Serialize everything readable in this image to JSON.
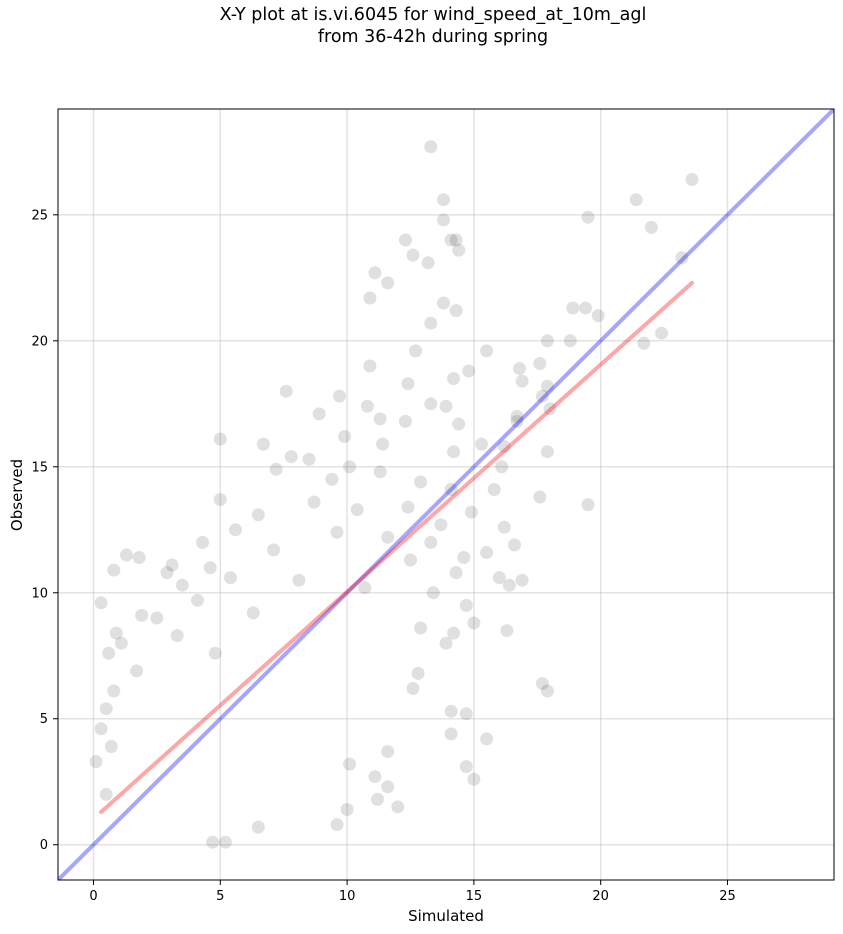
{
  "chart_data": {
    "type": "scatter",
    "title_line1": "X-Y plot at is.vi.6045 for wind_speed_at_10m_agl",
    "title_line2": "from 36-42h during spring",
    "xlabel": "Simulated",
    "ylabel": "Observed",
    "xlim": [
      -1.4,
      29.2
    ],
    "ylim": [
      -1.4,
      29.2
    ],
    "xticks": [
      0,
      5,
      10,
      15,
      20,
      25
    ],
    "yticks": [
      0,
      5,
      10,
      15,
      20,
      25
    ],
    "grid": true,
    "point_color": "#000000",
    "point_opacity": 0.12,
    "identity_line": {
      "color": "#0000ff",
      "opacity": 0.35,
      "x": [
        -1.4,
        29.2
      ],
      "y": [
        -1.4,
        29.2
      ]
    },
    "fit_line": {
      "color": "#ff0000",
      "opacity": 0.35,
      "x": [
        0.3,
        23.6
      ],
      "y": [
        1.3,
        22.3
      ]
    },
    "points": [
      [
        13.3,
        27.7
      ],
      [
        23.6,
        26.4
      ],
      [
        13.8,
        25.6
      ],
      [
        21.4,
        25.6
      ],
      [
        13.8,
        24.8
      ],
      [
        19.5,
        24.9
      ],
      [
        22.0,
        24.5
      ],
      [
        12.3,
        24.0
      ],
      [
        14.1,
        24.0
      ],
      [
        14.3,
        24.0
      ],
      [
        12.6,
        23.4
      ],
      [
        14.4,
        23.6
      ],
      [
        23.2,
        23.3
      ],
      [
        13.2,
        23.1
      ],
      [
        11.1,
        22.7
      ],
      [
        11.6,
        22.3
      ],
      [
        10.9,
        21.7
      ],
      [
        13.8,
        21.5
      ],
      [
        14.3,
        21.2
      ],
      [
        18.9,
        21.3
      ],
      [
        19.4,
        21.3
      ],
      [
        19.9,
        21.0
      ],
      [
        13.3,
        20.7
      ],
      [
        22.4,
        20.3
      ],
      [
        17.9,
        20.0
      ],
      [
        18.8,
        20.0
      ],
      [
        21.7,
        19.9
      ],
      [
        12.7,
        19.6
      ],
      [
        15.5,
        19.6
      ],
      [
        17.6,
        19.1
      ],
      [
        10.9,
        19.0
      ],
      [
        14.8,
        18.8
      ],
      [
        16.8,
        18.9
      ],
      [
        12.4,
        18.3
      ],
      [
        17.9,
        18.2
      ],
      [
        7.6,
        18.0
      ],
      [
        16.9,
        18.4
      ],
      [
        14.2,
        18.5
      ],
      [
        13.3,
        17.5
      ],
      [
        9.7,
        17.8
      ],
      [
        10.8,
        17.4
      ],
      [
        17.7,
        17.8
      ],
      [
        13.9,
        17.4
      ],
      [
        18.0,
        17.3
      ],
      [
        16.7,
        17.0
      ],
      [
        8.9,
        17.1
      ],
      [
        11.3,
        16.9
      ],
      [
        14.4,
        16.7
      ],
      [
        12.3,
        16.8
      ],
      [
        16.7,
        16.8
      ],
      [
        5.0,
        16.1
      ],
      [
        6.7,
        15.9
      ],
      [
        9.9,
        16.2
      ],
      [
        11.4,
        15.9
      ],
      [
        15.3,
        15.9
      ],
      [
        16.2,
        15.8
      ],
      [
        17.9,
        15.6
      ],
      [
        7.8,
        15.4
      ],
      [
        8.5,
        15.3
      ],
      [
        14.2,
        15.6
      ],
      [
        7.2,
        14.9
      ],
      [
        10.1,
        15.0
      ],
      [
        11.3,
        14.8
      ],
      [
        16.1,
        15.0
      ],
      [
        9.4,
        14.5
      ],
      [
        12.9,
        14.4
      ],
      [
        14.1,
        14.1
      ],
      [
        15.8,
        14.1
      ],
      [
        17.6,
        13.8
      ],
      [
        19.5,
        13.5
      ],
      [
        5.0,
        13.7
      ],
      [
        8.7,
        13.6
      ],
      [
        12.4,
        13.4
      ],
      [
        14.9,
        13.2
      ],
      [
        10.4,
        13.3
      ],
      [
        6.5,
        13.1
      ],
      [
        13.7,
        12.7
      ],
      [
        16.2,
        12.6
      ],
      [
        5.6,
        12.5
      ],
      [
        9.6,
        12.4
      ],
      [
        11.6,
        12.2
      ],
      [
        13.3,
        12.0
      ],
      [
        16.6,
        11.9
      ],
      [
        4.3,
        12.0
      ],
      [
        7.1,
        11.7
      ],
      [
        1.3,
        11.5
      ],
      [
        1.8,
        11.4
      ],
      [
        3.1,
        11.1
      ],
      [
        4.6,
        11.0
      ],
      [
        12.5,
        11.3
      ],
      [
        14.6,
        11.4
      ],
      [
        15.5,
        11.6
      ],
      [
        0.8,
        10.9
      ],
      [
        2.9,
        10.8
      ],
      [
        5.4,
        10.6
      ],
      [
        8.1,
        10.5
      ],
      [
        14.3,
        10.8
      ],
      [
        16.0,
        10.6
      ],
      [
        16.9,
        10.5
      ],
      [
        3.5,
        10.3
      ],
      [
        10.7,
        10.2
      ],
      [
        13.4,
        10.0
      ],
      [
        16.4,
        10.3
      ],
      [
        0.3,
        9.6
      ],
      [
        4.1,
        9.7
      ],
      [
        14.7,
        9.5
      ],
      [
        1.9,
        9.1
      ],
      [
        2.5,
        9.0
      ],
      [
        6.3,
        9.2
      ],
      [
        15.0,
        8.8
      ],
      [
        12.9,
        8.6
      ],
      [
        16.3,
        8.5
      ],
      [
        0.9,
        8.4
      ],
      [
        3.3,
        8.3
      ],
      [
        14.2,
        8.4
      ],
      [
        1.1,
        8.0
      ],
      [
        13.9,
        8.0
      ],
      [
        0.6,
        7.6
      ],
      [
        4.8,
        7.6
      ],
      [
        1.7,
        6.9
      ],
      [
        12.8,
        6.8
      ],
      [
        0.8,
        6.1
      ],
      [
        12.6,
        6.2
      ],
      [
        17.7,
        6.4
      ],
      [
        17.9,
        6.1
      ],
      [
        0.5,
        5.4
      ],
      [
        14.1,
        5.3
      ],
      [
        14.7,
        5.2
      ],
      [
        0.3,
        4.6
      ],
      [
        14.1,
        4.4
      ],
      [
        15.5,
        4.2
      ],
      [
        0.7,
        3.9
      ],
      [
        11.6,
        3.7
      ],
      [
        0.1,
        3.3
      ],
      [
        14.7,
        3.1
      ],
      [
        10.1,
        3.2
      ],
      [
        15.0,
        2.6
      ],
      [
        11.1,
        2.7
      ],
      [
        11.6,
        2.3
      ],
      [
        0.5,
        2.0
      ],
      [
        11.2,
        1.8
      ],
      [
        12.0,
        1.5
      ],
      [
        10.0,
        1.4
      ],
      [
        9.6,
        0.8
      ],
      [
        6.5,
        0.7
      ],
      [
        5.2,
        0.1
      ],
      [
        4.7,
        0.1
      ]
    ]
  }
}
